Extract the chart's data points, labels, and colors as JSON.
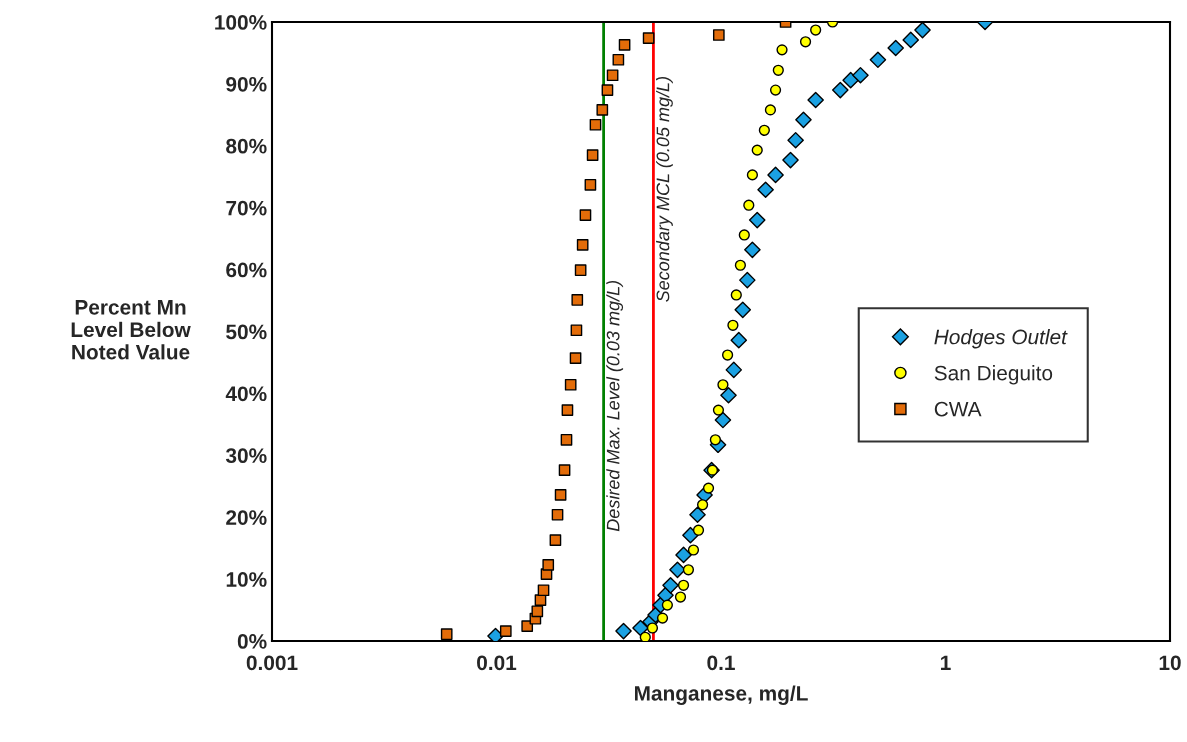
{
  "chart_data": {
    "type": "scatter",
    "xlabel": "Manganese, mg/L",
    "ylabel": "Percent Mn\nLevel Below\nNoted Value",
    "log": "x",
    "grid": false,
    "legend": "right",
    "xlim": [
      0.001,
      10
    ],
    "xticks": [
      0.001,
      0.01,
      0.1,
      1,
      10
    ],
    "ylim": [
      0,
      100
    ],
    "yticks": [
      {
        "value": 0,
        "label": "0%"
      },
      {
        "value": 10,
        "label": "10%"
      },
      {
        "value": 20,
        "label": "20%"
      },
      {
        "value": 30,
        "label": "30%"
      },
      {
        "value": 40,
        "label": "40%"
      },
      {
        "value": 50,
        "label": "50%"
      },
      {
        "value": 60,
        "label": "60%"
      },
      {
        "value": 70,
        "label": "70%"
      },
      {
        "value": 80,
        "label": "80%"
      },
      {
        "value": 90,
        "label": "90%"
      },
      {
        "value": 100,
        "label": "100%"
      }
    ],
    "series": [
      {
        "name": "Hodges Outlet",
        "color": "#1ba1e2",
        "marker": "diamond",
        "x": [
          0.0099,
          0.0368,
          0.0438,
          0.0485,
          0.0511,
          0.0538,
          0.0566,
          0.0596,
          0.064,
          0.0681,
          0.0731,
          0.0786,
          0.0845,
          0.0908,
          0.097,
          0.102,
          0.108,
          0.114,
          0.12,
          0.125,
          0.131,
          0.138,
          0.145,
          0.158,
          0.175,
          0.204,
          0.215,
          0.233,
          0.264,
          0.34,
          0.378,
          0.418,
          0.5,
          0.6,
          0.7,
          0.79,
          1.5
        ],
        "values": [
          0.8,
          1.6,
          2.1,
          3.1,
          4.2,
          5.8,
          7.4,
          9,
          11.5,
          13.9,
          17.1,
          20.4,
          23.6,
          27.6,
          31.7,
          35.7,
          39.7,
          43.8,
          48.6,
          53.5,
          58.3,
          63.2,
          68,
          72.9,
          75.3,
          77.7,
          80.9,
          84.2,
          87.4,
          89,
          90.6,
          91.4,
          93.9,
          95.8,
          97.1,
          98.7,
          100
        ]
      },
      {
        "name": "San Dieguito",
        "color": "#ffff00",
        "marker": "circle",
        "x": [
          0.046,
          0.0495,
          0.0549,
          0.0577,
          0.066,
          0.0681,
          0.0716,
          0.0754,
          0.0794,
          0.0828,
          0.088,
          0.0916,
          0.0944,
          0.0974,
          0.102,
          0.107,
          0.113,
          0.117,
          0.122,
          0.127,
          0.133,
          0.138,
          0.145,
          0.156,
          0.166,
          0.175,
          0.18,
          0.187,
          0.238,
          0.264,
          0.314
        ],
        "values": [
          0.6,
          2.1,
          3.7,
          5.8,
          7.1,
          9,
          11.5,
          14.7,
          17.9,
          22,
          24.7,
          27.6,
          32.5,
          37.3,
          41.4,
          46.2,
          51,
          55.9,
          60.7,
          65.6,
          70.4,
          75.3,
          79.3,
          82.5,
          85.8,
          89,
          92.2,
          95.5,
          96.8,
          98.7,
          100
        ]
      },
      {
        "name": "CWA",
        "color": "#e36c09",
        "marker": "square",
        "x": [
          0.006,
          0.011,
          0.0137,
          0.0149,
          0.0152,
          0.0157,
          0.0162,
          0.0167,
          0.017,
          0.0183,
          0.0187,
          0.0193,
          0.0201,
          0.0205,
          0.0207,
          0.0214,
          0.0225,
          0.0227,
          0.0229,
          0.0237,
          0.0242,
          0.0249,
          0.0262,
          0.0268,
          0.0276,
          0.0296,
          0.0312,
          0.0329,
          0.0349,
          0.0372,
          0.0476,
          0.0978,
          0.194
        ],
        "values": [
          1.1,
          1.6,
          2.4,
          3.6,
          4.8,
          6.6,
          8.2,
          10.8,
          12.3,
          16.3,
          20.4,
          23.6,
          27.6,
          32.5,
          37.3,
          41.4,
          45.7,
          50.2,
          55.1,
          59.9,
          64,
          68.8,
          73.7,
          78.5,
          83.4,
          85.8,
          89,
          91.4,
          93.9,
          96.3,
          97.4,
          97.9,
          100
        ]
      }
    ],
    "ref_lines": [
      {
        "axis": "x",
        "value": 0.03,
        "label": "Desired Max. Level (0.03 mg/L)",
        "color": "#008000"
      },
      {
        "axis": "x",
        "value": 0.05,
        "label": "Secondary MCL (0.05 mg/L)",
        "color": "#ff0000"
      }
    ]
  }
}
